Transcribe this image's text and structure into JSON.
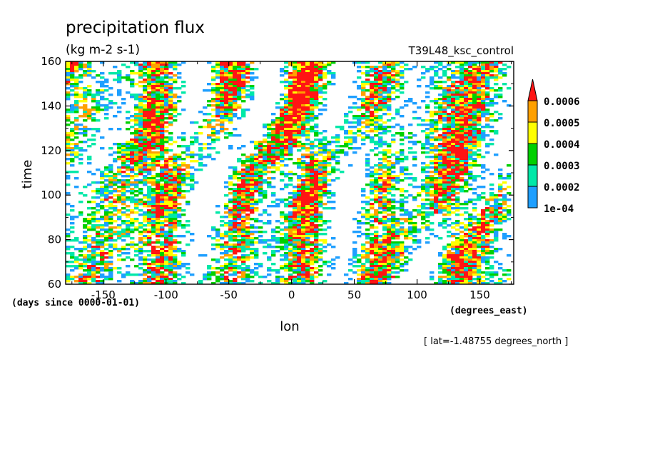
{
  "chart_data": {
    "type": "heatmap",
    "title": "precipitation flux",
    "subtitle": "(kg m-2 s-1)",
    "run_label": "T39L48_ksc_control",
    "xlabel": "lon",
    "x_units": "(degrees_east)",
    "ylabel": "time",
    "y_units": "(days since 0000-01-01)",
    "footnote": "[ lat=-1.48755 degrees_north ]",
    "xlim": [
      -180,
      177
    ],
    "ylim": [
      60,
      160
    ],
    "x_ticks": [
      "-150",
      "-100",
      "-50",
      "0",
      "50",
      "100",
      "150"
    ],
    "y_ticks": [
      "60",
      "80",
      "100",
      "120",
      "140",
      "160"
    ],
    "colorbar": {
      "labels": [
        "1e-04",
        "0.0002",
        "0.0003",
        "0.0004",
        "0.0005",
        "0.0006"
      ],
      "colors": [
        "#1e9fff",
        "#00e8a8",
        "#00d000",
        "#ffff00",
        "#ffa000",
        "#ff1414"
      ],
      "extend": "max"
    },
    "legend_position": "right",
    "grid": false
  }
}
